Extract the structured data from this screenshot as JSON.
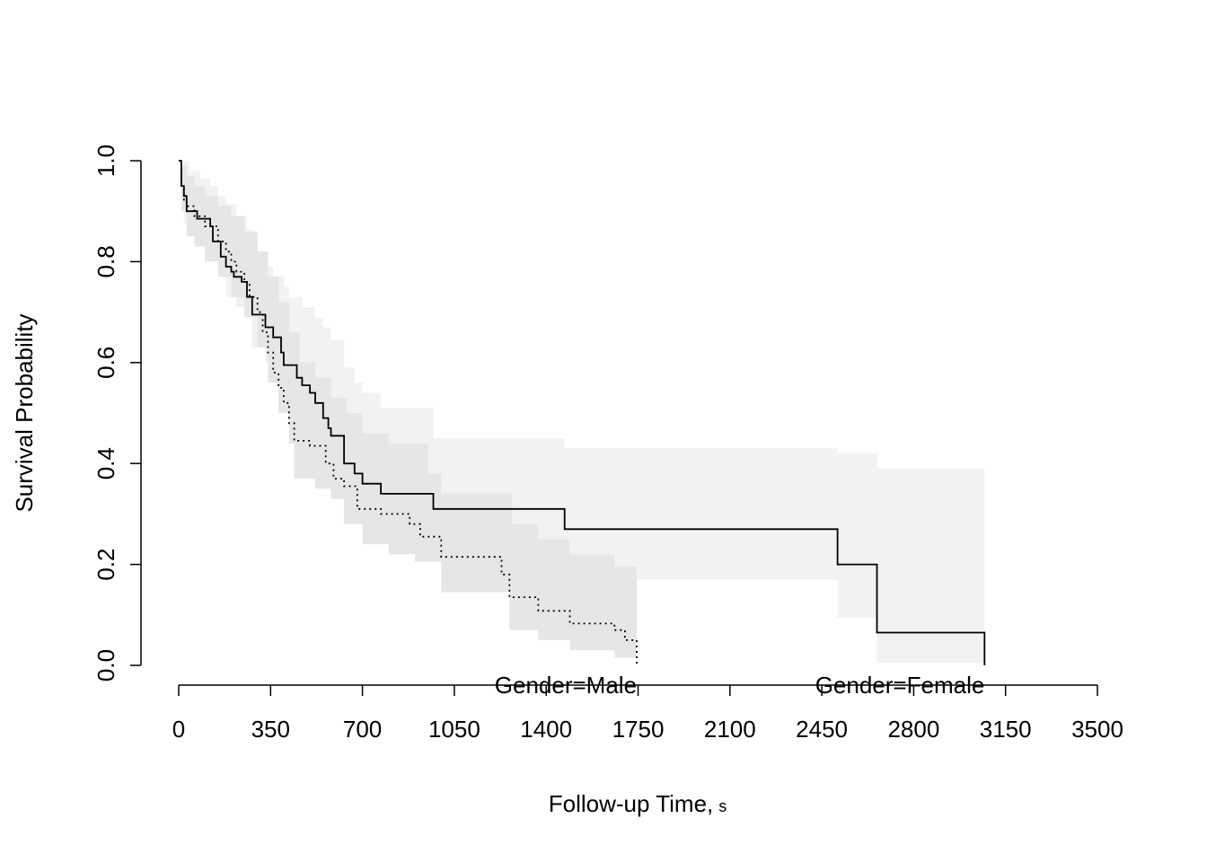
{
  "chart_data": {
    "type": "line",
    "title": "",
    "xlabel": "Follow-up Time,",
    "xlabel_unit": "s",
    "ylabel": "Survival Probability",
    "xlim": [
      0,
      3500
    ],
    "ylim": [
      0,
      1
    ],
    "x_ticks": [
      0,
      350,
      700,
      1050,
      1400,
      1750,
      2100,
      2450,
      2800,
      3150,
      3500
    ],
    "x_tick_labels": [
      "0",
      "350",
      "700",
      "1050",
      "1400",
      "1750",
      "2100",
      "2450",
      "2800",
      "3150",
      "3500"
    ],
    "y_ticks": [
      0,
      0.2,
      0.4,
      0.6,
      0.8,
      1.0
    ],
    "y_tick_labels": [
      "0.0",
      "0.2",
      "0.4",
      "0.6",
      "0.8",
      "1.0"
    ],
    "grid": false,
    "confidence_band_colors": {
      "Male": "#e6e6e6",
      "Female": "#f2f2f2"
    },
    "series": [
      {
        "name": "Gender=Male",
        "line_style": "dotted",
        "color": "#000000",
        "steps": [
          [
            0,
            1.0
          ],
          [
            10,
            0.95
          ],
          [
            20,
            0.92
          ],
          [
            30,
            0.91
          ],
          [
            60,
            0.89
          ],
          [
            100,
            0.87
          ],
          [
            150,
            0.84
          ],
          [
            180,
            0.82
          ],
          [
            200,
            0.8
          ],
          [
            220,
            0.78
          ],
          [
            250,
            0.76
          ],
          [
            270,
            0.73
          ],
          [
            300,
            0.7
          ],
          [
            320,
            0.66
          ],
          [
            340,
            0.62
          ],
          [
            360,
            0.58
          ],
          [
            380,
            0.55
          ],
          [
            400,
            0.52
          ],
          [
            420,
            0.48
          ],
          [
            440,
            0.445
          ],
          [
            500,
            0.435
          ],
          [
            560,
            0.4
          ],
          [
            590,
            0.37
          ],
          [
            630,
            0.355
          ],
          [
            680,
            0.31
          ],
          [
            770,
            0.3
          ],
          [
            880,
            0.28
          ],
          [
            920,
            0.255
          ],
          [
            1000,
            0.215
          ],
          [
            1230,
            0.18
          ],
          [
            1260,
            0.135
          ],
          [
            1370,
            0.108
          ],
          [
            1490,
            0.083
          ],
          [
            1660,
            0.07
          ],
          [
            1700,
            0.05
          ],
          [
            1745,
            0.0
          ]
        ],
        "ci_upper": [
          [
            0,
            1.0
          ],
          [
            10,
            0.99
          ],
          [
            30,
            0.97
          ],
          [
            60,
            0.95
          ],
          [
            100,
            0.93
          ],
          [
            150,
            0.91
          ],
          [
            200,
            0.89
          ],
          [
            250,
            0.86
          ],
          [
            300,
            0.82
          ],
          [
            340,
            0.77
          ],
          [
            380,
            0.72
          ],
          [
            420,
            0.66
          ],
          [
            460,
            0.6
          ],
          [
            520,
            0.57
          ],
          [
            580,
            0.53
          ],
          [
            640,
            0.5
          ],
          [
            700,
            0.46
          ],
          [
            800,
            0.44
          ],
          [
            950,
            0.38
          ],
          [
            1000,
            0.34
          ],
          [
            1230,
            0.34
          ],
          [
            1270,
            0.28
          ],
          [
            1370,
            0.25
          ],
          [
            1490,
            0.22
          ],
          [
            1660,
            0.195
          ],
          [
            1745,
            0.195
          ]
        ],
        "ci_lower": [
          [
            0,
            1.0
          ],
          [
            10,
            0.9
          ],
          [
            30,
            0.85
          ],
          [
            60,
            0.83
          ],
          [
            100,
            0.8
          ],
          [
            150,
            0.77
          ],
          [
            200,
            0.73
          ],
          [
            250,
            0.69
          ],
          [
            300,
            0.63
          ],
          [
            340,
            0.56
          ],
          [
            380,
            0.5
          ],
          [
            420,
            0.44
          ],
          [
            440,
            0.37
          ],
          [
            520,
            0.35
          ],
          [
            580,
            0.33
          ],
          [
            630,
            0.28
          ],
          [
            700,
            0.24
          ],
          [
            800,
            0.22
          ],
          [
            900,
            0.205
          ],
          [
            1000,
            0.145
          ],
          [
            1230,
            0.145
          ],
          [
            1260,
            0.07
          ],
          [
            1370,
            0.05
          ],
          [
            1490,
            0.03
          ],
          [
            1660,
            0.015
          ],
          [
            1745,
            0.0
          ]
        ],
        "label_x": 1350
      },
      {
        "name": "Gender=Female",
        "line_style": "solid",
        "color": "#000000",
        "steps": [
          [
            0,
            1.0
          ],
          [
            10,
            0.95
          ],
          [
            20,
            0.93
          ],
          [
            30,
            0.9
          ],
          [
            70,
            0.885
          ],
          [
            120,
            0.87
          ],
          [
            130,
            0.84
          ],
          [
            160,
            0.81
          ],
          [
            180,
            0.79
          ],
          [
            200,
            0.78
          ],
          [
            210,
            0.77
          ],
          [
            240,
            0.76
          ],
          [
            260,
            0.73
          ],
          [
            280,
            0.695
          ],
          [
            330,
            0.67
          ],
          [
            360,
            0.65
          ],
          [
            390,
            0.62
          ],
          [
            400,
            0.595
          ],
          [
            450,
            0.57
          ],
          [
            470,
            0.555
          ],
          [
            500,
            0.54
          ],
          [
            520,
            0.52
          ],
          [
            550,
            0.49
          ],
          [
            570,
            0.47
          ],
          [
            580,
            0.455
          ],
          [
            630,
            0.4
          ],
          [
            650,
            0.4
          ],
          [
            670,
            0.38
          ],
          [
            700,
            0.36
          ],
          [
            770,
            0.34
          ],
          [
            970,
            0.31
          ],
          [
            1470,
            0.27
          ],
          [
            2510,
            0.2
          ],
          [
            2660,
            0.065
          ],
          [
            3070,
            0.0
          ]
        ],
        "ci_upper": [
          [
            0,
            1.0
          ],
          [
            20,
            1.0
          ],
          [
            40,
            0.98
          ],
          [
            80,
            0.965
          ],
          [
            120,
            0.95
          ],
          [
            150,
            0.93
          ],
          [
            180,
            0.915
          ],
          [
            220,
            0.89
          ],
          [
            260,
            0.865
          ],
          [
            280,
            0.84
          ],
          [
            300,
            0.82
          ],
          [
            330,
            0.79
          ],
          [
            360,
            0.77
          ],
          [
            400,
            0.75
          ],
          [
            420,
            0.73
          ],
          [
            470,
            0.71
          ],
          [
            520,
            0.69
          ],
          [
            550,
            0.67
          ],
          [
            580,
            0.645
          ],
          [
            630,
            0.59
          ],
          [
            670,
            0.56
          ],
          [
            700,
            0.54
          ],
          [
            770,
            0.51
          ],
          [
            970,
            0.45
          ],
          [
            1470,
            0.43
          ],
          [
            2510,
            0.42
          ],
          [
            2660,
            0.39
          ],
          [
            3070,
            0.39
          ]
        ],
        "ci_lower": [
          [
            0,
            1.0
          ],
          [
            20,
            0.875
          ],
          [
            40,
            0.855
          ],
          [
            80,
            0.84
          ],
          [
            120,
            0.83
          ],
          [
            150,
            0.78
          ],
          [
            180,
            0.73
          ],
          [
            220,
            0.71
          ],
          [
            260,
            0.69
          ],
          [
            280,
            0.63
          ],
          [
            330,
            0.6
          ],
          [
            360,
            0.56
          ],
          [
            390,
            0.53
          ],
          [
            420,
            0.5
          ],
          [
            450,
            0.48
          ],
          [
            470,
            0.46
          ],
          [
            500,
            0.44
          ],
          [
            550,
            0.4
          ],
          [
            580,
            0.385
          ],
          [
            630,
            0.35
          ],
          [
            670,
            0.32
          ],
          [
            700,
            0.29
          ],
          [
            770,
            0.27
          ],
          [
            970,
            0.25
          ],
          [
            1470,
            0.17
          ],
          [
            2510,
            0.095
          ],
          [
            2660,
            0.005
          ],
          [
            3070,
            0.0
          ]
        ],
        "label_x": 2660
      }
    ]
  }
}
